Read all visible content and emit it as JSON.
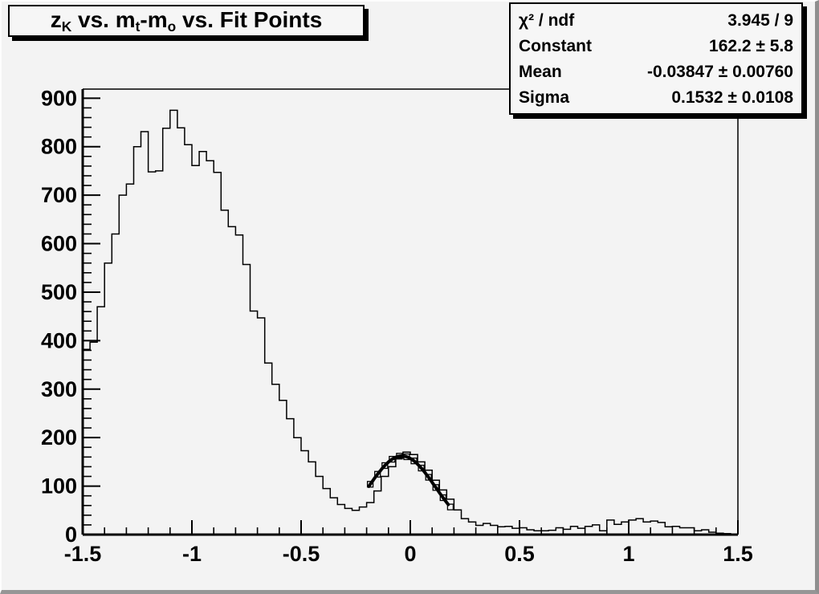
{
  "chart_data": {
    "type": "histogram",
    "title": "zK vs. mt-mo vs. Fit Points",
    "title_parts": [
      {
        "text": "z"
      },
      {
        "text": "K",
        "style": "sub"
      },
      {
        "text": " vs. m"
      },
      {
        "text": "t",
        "style": "sub"
      },
      {
        "text": "-m"
      },
      {
        "text": "o",
        "style": "sub"
      },
      {
        "text": " vs. Fit Points"
      }
    ],
    "stats_box": {
      "rows": [
        {
          "label": "χ² / ndf",
          "value": "3.945 / 9"
        },
        {
          "label": "Constant",
          "value": "162.2 ± 5.8"
        },
        {
          "label": "Mean",
          "value": "-0.03847 ± 0.00760"
        },
        {
          "label": "Sigma",
          "value": "0.1532 ± 0.0108"
        }
      ]
    },
    "xaxis": {
      "min": -1.5,
      "max": 1.5,
      "major_ticks": [
        -1.5,
        -1,
        -0.5,
        0,
        0.5,
        1,
        1.5
      ],
      "tick_labels": [
        "-1.5",
        "-1",
        "-0.5",
        "0",
        "0.5",
        "1",
        "1.5"
      ],
      "minor_step": 0.1
    },
    "yaxis": {
      "min": 0,
      "max": 918.75,
      "major_ticks": [
        0,
        100,
        200,
        300,
        400,
        500,
        600,
        700,
        800,
        900
      ],
      "tick_labels": [
        "0",
        "100",
        "200",
        "300",
        "400",
        "500",
        "600",
        "700",
        "800",
        "900"
      ],
      "minor_step": 20
    },
    "bins": {
      "x_start": -1.5,
      "bin_width": 0.0333333,
      "values": [
        382,
        397,
        470,
        560,
        620,
        700,
        723,
        800,
        831,
        748,
        750,
        838,
        875,
        839,
        804,
        761,
        790,
        771,
        747,
        669,
        635,
        618,
        557,
        461,
        447,
        354,
        310,
        277,
        239,
        200,
        173,
        150,
        120,
        95,
        76,
        62,
        54,
        50,
        57,
        66,
        90,
        120,
        140,
        158,
        170,
        165,
        150,
        133,
        112,
        92,
        73,
        51,
        33,
        26,
        19,
        23,
        19,
        16,
        17,
        13,
        14,
        10,
        8,
        8,
        9,
        14,
        11,
        17,
        13,
        17,
        20,
        8,
        30,
        21,
        26,
        30,
        33,
        26,
        28,
        25,
        16,
        17,
        14,
        14,
        8,
        10,
        5,
        3,
        2,
        1
      ]
    },
    "fit": {
      "type": "gaussian",
      "constant": 162.2,
      "mean": -0.03847,
      "sigma": 0.1532,
      "x_min": -0.19,
      "x_max": 0.175
    },
    "fit_points": {
      "x_start": -0.18333,
      "step": 0.0333333,
      "count": 12
    },
    "colors": {
      "background": "#f3f3f3",
      "box_background": "#f6f6f6",
      "line": "#000000",
      "bevel_light": "#fdfdfd",
      "bevel_dark": "#8f8f8f"
    }
  }
}
